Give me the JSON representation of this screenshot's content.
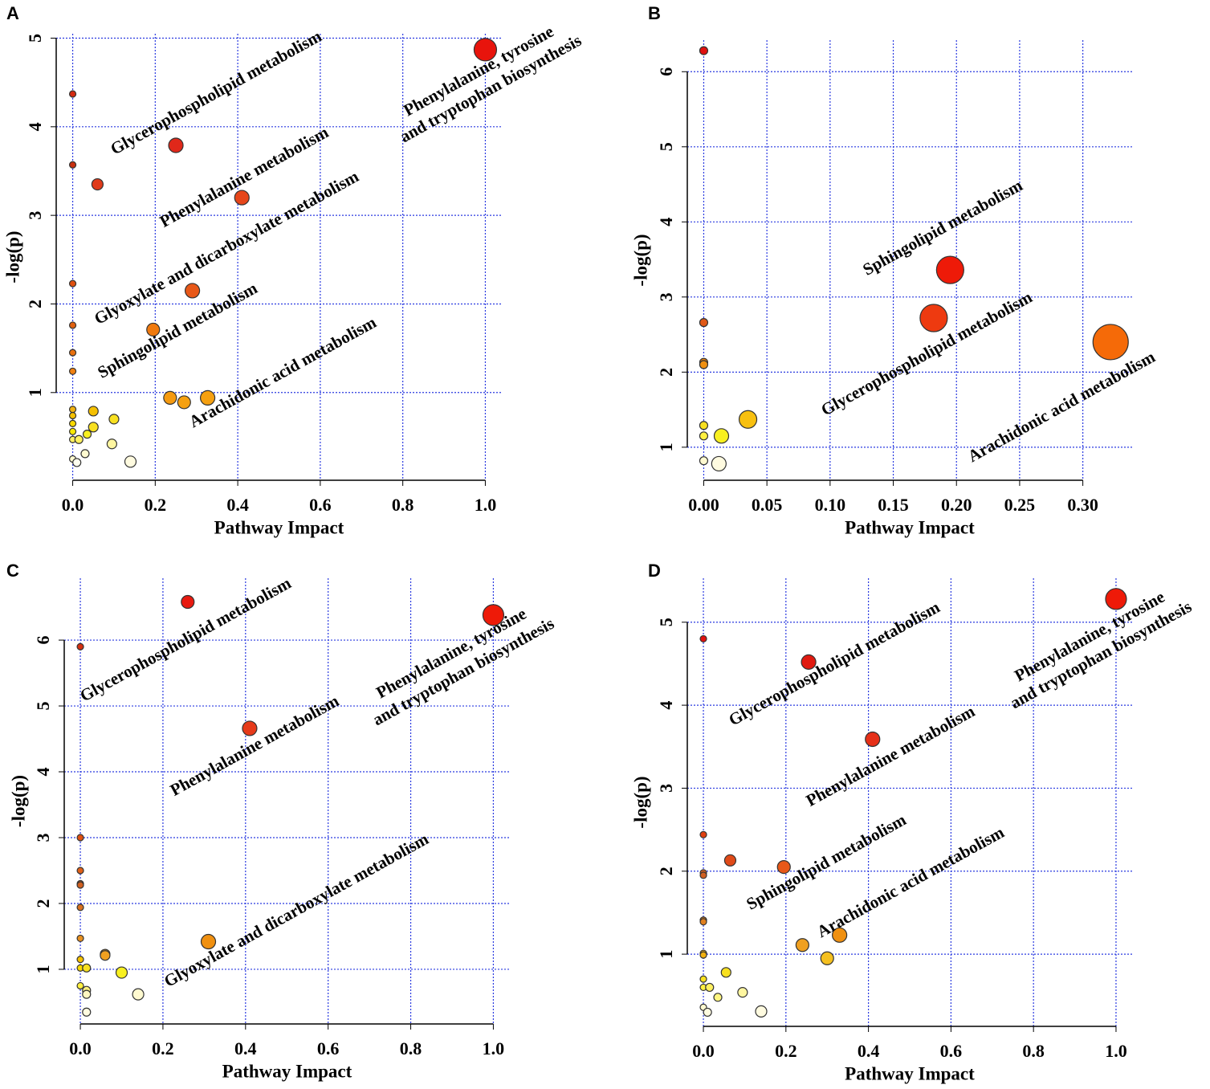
{
  "chart_data": [
    {
      "type": "scatter",
      "panel": "A",
      "xlabel": "Pathway Impact",
      "ylabel": "-log(p)",
      "xlim": [
        -0.04,
        1.04
      ],
      "ylim": [
        0.01,
        5.05
      ],
      "xticks": [
        {
          "value": 0,
          "label": "0.0"
        },
        {
          "value": 0.2,
          "label": "0.2"
        },
        {
          "value": 0.4,
          "label": "0.4"
        },
        {
          "value": 0.6,
          "label": "0.6"
        },
        {
          "value": 0.8,
          "label": "0.8"
        },
        {
          "value": 1,
          "label": "1.0"
        }
      ],
      "yticks": [
        1,
        2,
        3,
        4,
        5
      ],
      "grid": true,
      "x": [
        1.0,
        0.0,
        0.25,
        0.0,
        0.06,
        0.41,
        0.0,
        0.29,
        0.0,
        0.195,
        0.0,
        0.0,
        0.236,
        0.27,
        0.327,
        0.0,
        0.0,
        0.05,
        0.0,
        0.1,
        0.05,
        0.0,
        0.035,
        0.0,
        0.015,
        0.095,
        0.0,
        0.03,
        0.14,
        0.01
      ],
      "values": [
        4.87,
        4.37,
        3.79,
        3.57,
        3.35,
        3.2,
        2.23,
        2.15,
        1.76,
        1.71,
        1.45,
        1.24,
        0.94,
        0.89,
        0.94,
        0.81,
        0.74,
        0.79,
        0.65,
        0.7,
        0.61,
        0.56,
        0.53,
        0.47,
        0.47,
        0.42,
        0.25,
        0.31,
        0.22,
        0.21
      ],
      "sizes": [
        14,
        4,
        9,
        4,
        7,
        9,
        4,
        9,
        4,
        8,
        4,
        4,
        8,
        8,
        9,
        4,
        4,
        6,
        4,
        6,
        6,
        4,
        5,
        4,
        5,
        6,
        4,
        5,
        7,
        5
      ],
      "colors": [
        "#e8140c",
        "#d42a10",
        "#e0281a",
        "#c83010",
        "#e03a1a",
        "#e6461a",
        "#e05010",
        "#e85818",
        "#e06010",
        "#f07a10",
        "#e87010",
        "#f08010",
        "#f59a10",
        "#f5a010",
        "#f5a010",
        "#f0b010",
        "#f5c000",
        "#f5c000",
        "#f8d800",
        "#f8e020",
        "#f8e020",
        "#f8e800",
        "#f8f020",
        "#fff060",
        "#fff060",
        "#fff6a0",
        "#fffad0",
        "#fffad0",
        "#fffbe0",
        "#fffff0"
      ],
      "annotations": [
        "Glycerophospholipid metabolism",
        "Phenylalanine metabolism",
        "Glyoxylate and dicarboxylate metabolism",
        "Sphingolipid metabolism",
        "Arachidonic acid metabolism",
        "Phenylalanine, tyrosine",
        "and tryptophan biosynthesis"
      ]
    },
    {
      "type": "scatter",
      "panel": "B",
      "xlabel": "Pathway Impact",
      "ylabel": "-log(p)",
      "xlim": [
        -0.013,
        0.339
      ],
      "ylim": [
        0.56,
        6.42
      ],
      "xticks": [
        {
          "value": 0,
          "label": "0.00"
        },
        {
          "value": 0.05,
          "label": "0.05"
        },
        {
          "value": 0.1,
          "label": "0.10"
        },
        {
          "value": 0.15,
          "label": "0.15"
        },
        {
          "value": 0.2,
          "label": "0.20"
        },
        {
          "value": 0.25,
          "label": "0.25"
        },
        {
          "value": 0.3,
          "label": "0.30"
        }
      ],
      "yticks": [
        1,
        2,
        3,
        4,
        5,
        6
      ],
      "grid": true,
      "x": [
        0.0,
        0.195,
        0.182,
        0.322,
        0.0,
        0.0,
        0.0,
        0.035,
        0.0,
        0.014,
        0.0,
        0.0,
        0.012
      ],
      "values": [
        6.28,
        3.36,
        2.72,
        2.4,
        2.66,
        2.13,
        2.1,
        1.37,
        1.29,
        1.15,
        1.15,
        0.82,
        0.78
      ],
      "sizes": [
        5,
        17,
        17,
        22,
        5,
        5,
        5,
        11,
        5,
        9,
        5,
        5,
        9
      ],
      "colors": [
        "#e01010",
        "#ee1a08",
        "#ee3a10",
        "#f56a08",
        "#e05818",
        "#e88010",
        "#f09010",
        "#f8c010",
        "#f8e020",
        "#f8f020",
        "#fff040",
        "#fffad0",
        "#fffbe0"
      ],
      "annotations": [
        "Sphingolipid metabolism",
        "Glycerophospholipid metabolism",
        "Arachidonic acid metabolism"
      ]
    },
    {
      "type": "scatter",
      "panel": "C",
      "xlabel": "Pathway Impact",
      "ylabel": "-log(p)",
      "xlim": [
        -0.039,
        1.04
      ],
      "ylim": [
        0.17,
        6.94
      ],
      "xticks": [
        {
          "value": 0,
          "label": "0.0"
        },
        {
          "value": 0.2,
          "label": "0.2"
        },
        {
          "value": 0.4,
          "label": "0.4"
        },
        {
          "value": 0.6,
          "label": "0.6"
        },
        {
          "value": 0.8,
          "label": "0.8"
        },
        {
          "value": 1,
          "label": "1.0"
        }
      ],
      "yticks": [
        1,
        2,
        3,
        4,
        5,
        6
      ],
      "grid": true,
      "x": [
        0.26,
        1.0,
        0.0,
        0.41,
        0.0,
        0.0,
        0.0,
        0.0,
        0.0,
        0.0,
        0.31,
        0.06,
        0.06,
        0.0,
        0.0,
        0.015,
        0.1,
        0.0,
        0.015,
        0.015,
        0.14,
        0.015
      ],
      "values": [
        6.58,
        6.38,
        5.9,
        4.66,
        3.0,
        2.5,
        2.3,
        2.28,
        1.94,
        1.47,
        1.42,
        1.23,
        1.21,
        1.15,
        1.02,
        1.02,
        0.95,
        0.75,
        0.68,
        0.62,
        0.62,
        0.35
      ],
      "sizes": [
        8,
        13,
        4,
        9,
        4,
        4,
        4,
        4,
        4,
        4,
        9,
        6,
        6,
        4,
        4,
        5,
        7,
        4,
        5,
        5,
        7,
        5
      ],
      "colors": [
        "#e81a10",
        "#ee1a08",
        "#d43010",
        "#e63a1a",
        "#e05010",
        "#e06018",
        "#d06020",
        "#d06020",
        "#d87020",
        "#e89020",
        "#f09010",
        "#f0a020",
        "#f0a020",
        "#f5c000",
        "#f8d800",
        "#f8e020",
        "#f8f020",
        "#fff040",
        "#fff080",
        "#fff6c0",
        "#fffad0",
        "#fffbe0"
      ],
      "annotations": [
        "Glycerophospholipid metabolism",
        "Phenylalanine metabolism",
        "Glyoxylate and dicarboxylate metabolism",
        "Phenylalanine, tyrosine",
        "and tryptophan biosynthesis"
      ]
    },
    {
      "type": "scatter",
      "panel": "D",
      "xlabel": "Pathway Impact",
      "ylabel": "-log(p)",
      "xlim": [
        -0.039,
        1.039
      ],
      "ylim": [
        0.13,
        5.53
      ],
      "xticks": [
        {
          "value": 0,
          "label": "0.0"
        },
        {
          "value": 0.2,
          "label": "0.2"
        },
        {
          "value": 0.4,
          "label": "0.4"
        },
        {
          "value": 0.6,
          "label": "0.6"
        },
        {
          "value": 0.8,
          "label": "0.8"
        },
        {
          "value": 1,
          "label": "1.0"
        }
      ],
      "yticks": [
        1,
        2,
        3,
        4,
        5
      ],
      "grid": true,
      "x": [
        1.0,
        0.0,
        0.255,
        0.41,
        0.0,
        0.065,
        0.195,
        0.0,
        0.0,
        0.0,
        0.0,
        0.33,
        0.24,
        0.0,
        0.0,
        0.3,
        0.055,
        0.0,
        0.0,
        0.015,
        0.035,
        0.095,
        0.0,
        0.01,
        0.14
      ],
      "values": [
        5.28,
        4.8,
        4.52,
        3.59,
        2.44,
        2.13,
        2.05,
        1.98,
        1.95,
        1.41,
        1.39,
        1.23,
        1.11,
        1.01,
        0.99,
        0.95,
        0.78,
        0.7,
        0.6,
        0.6,
        0.48,
        0.54,
        0.36,
        0.3,
        0.31
      ],
      "sizes": [
        13,
        4,
        9,
        9,
        4,
        7,
        8,
        4,
        4,
        4,
        4,
        9,
        8,
        4,
        4,
        8,
        6,
        4,
        4,
        5,
        5,
        6,
        4,
        5,
        7
      ],
      "colors": [
        "#ee1a08",
        "#e01010",
        "#e01a10",
        "#e63018",
        "#e04010",
        "#e04a18",
        "#e85818",
        "#d06020",
        "#d06020",
        "#e08020",
        "#e08020",
        "#f09010",
        "#f0a020",
        "#f0b010",
        "#f0b010",
        "#f5c020",
        "#f8e020",
        "#f8e020",
        "#fff040",
        "#fff060",
        "#fff680",
        "#fff6a0",
        "#fffad0",
        "#fffbe0",
        "#fffbe0"
      ],
      "annotations": [
        "Glycerophospholipid metabolism",
        "Phenylalanine metabolism",
        "Sphingolipid metabolism",
        "Arachidonic acid metabolism",
        "Phenylalanine, tyrosine",
        "and tryptophan biosynthesis"
      ]
    }
  ]
}
